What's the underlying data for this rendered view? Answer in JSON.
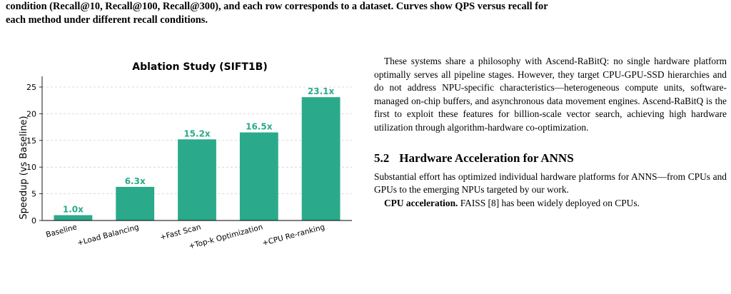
{
  "caption_tail": {
    "line1": "condition (Recall@10, Recall@100, Recall@300), and each row corresponds to a dataset. Curves show QPS versus recall for",
    "line2": "each method under different recall conditions."
  },
  "chart_data": {
    "type": "bar",
    "title": "Ablation Study (SIFT1B)",
    "xlabel": "",
    "ylabel": "Speedup (vs Baseline)",
    "categories": [
      "Baseline",
      "+Load Balancing",
      "+Fast Scan",
      "+Top-k Optimization",
      "+CPU Re-ranking"
    ],
    "values": [
      1.0,
      6.3,
      15.2,
      16.5,
      23.1
    ],
    "data_labels": [
      "1.0x",
      "6.3x",
      "15.2x",
      "16.5x",
      "23.1x"
    ],
    "ylim": [
      0,
      27
    ],
    "yticks": [
      0,
      5,
      10,
      15,
      20,
      25
    ],
    "grid": true,
    "bar_color": "#2aaa8a",
    "label_color": "#2aaa8a"
  },
  "right_column": {
    "para1": "These systems share a philosophy with Ascend-RaBitQ: no single hardware platform optimally serves all pipeline stages. However, they target CPU-GPU-SSD hierarchies and do not address NPU-specific characteristics—heterogeneous compute units, software-managed on-chip buffers, and asynchronous data movement engines. Ascend-RaBitQ is the first to exploit these features for billion-scale vector search, achieving high hardware utilization through algorithm-hardware co-optimization.",
    "section_number": "5.2",
    "section_title": "Hardware Acceleration for ANNS",
    "para2": "Substantial effort has optimized individual hardware platforms for ANNS—from CPUs and GPUs to the emerging NPUs targeted by our work.",
    "para3_runin": "CPU acceleration.",
    "para3_text": " FAISS [8] has been widely deployed on CPUs."
  }
}
